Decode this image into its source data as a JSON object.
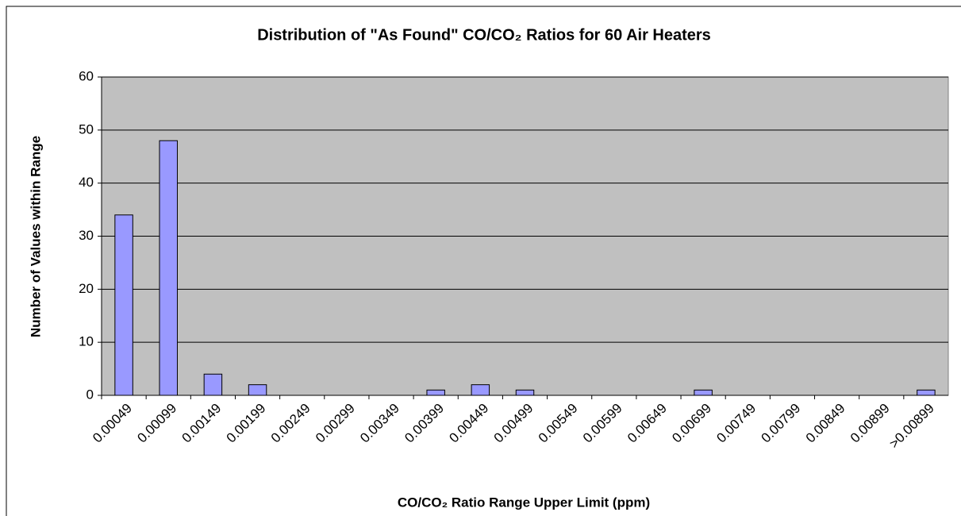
{
  "chart_data": {
    "type": "bar",
    "title": "Distribution of \"As Found\" CO/CO₂ Ratios for 60 Air Heaters",
    "x_label": "CO/CO₂ Ratio Range Upper Limit (ppm)",
    "y_label": "Number of Values within Range",
    "categories": [
      "0.00049",
      "0.00099",
      "0.00149",
      "0.00199",
      "0.00249",
      "0.00299",
      "0.00349",
      "0.00399",
      "0.00449",
      "0.00499",
      "0.00549",
      "0.00599",
      "0.00649",
      "0.00699",
      "0.00749",
      "0.00799",
      "0.00849",
      "0.00899",
      ">0.00899"
    ],
    "values": [
      34,
      48,
      4,
      2,
      0,
      0,
      0,
      1,
      2,
      1,
      0,
      0,
      0,
      1,
      0,
      0,
      0,
      0,
      1
    ],
    "color": "#9999ff",
    "ylim": [
      0,
      60
    ],
    "yticks": [
      0,
      10,
      20,
      30,
      40,
      50,
      60
    ],
    "grid": true
  }
}
